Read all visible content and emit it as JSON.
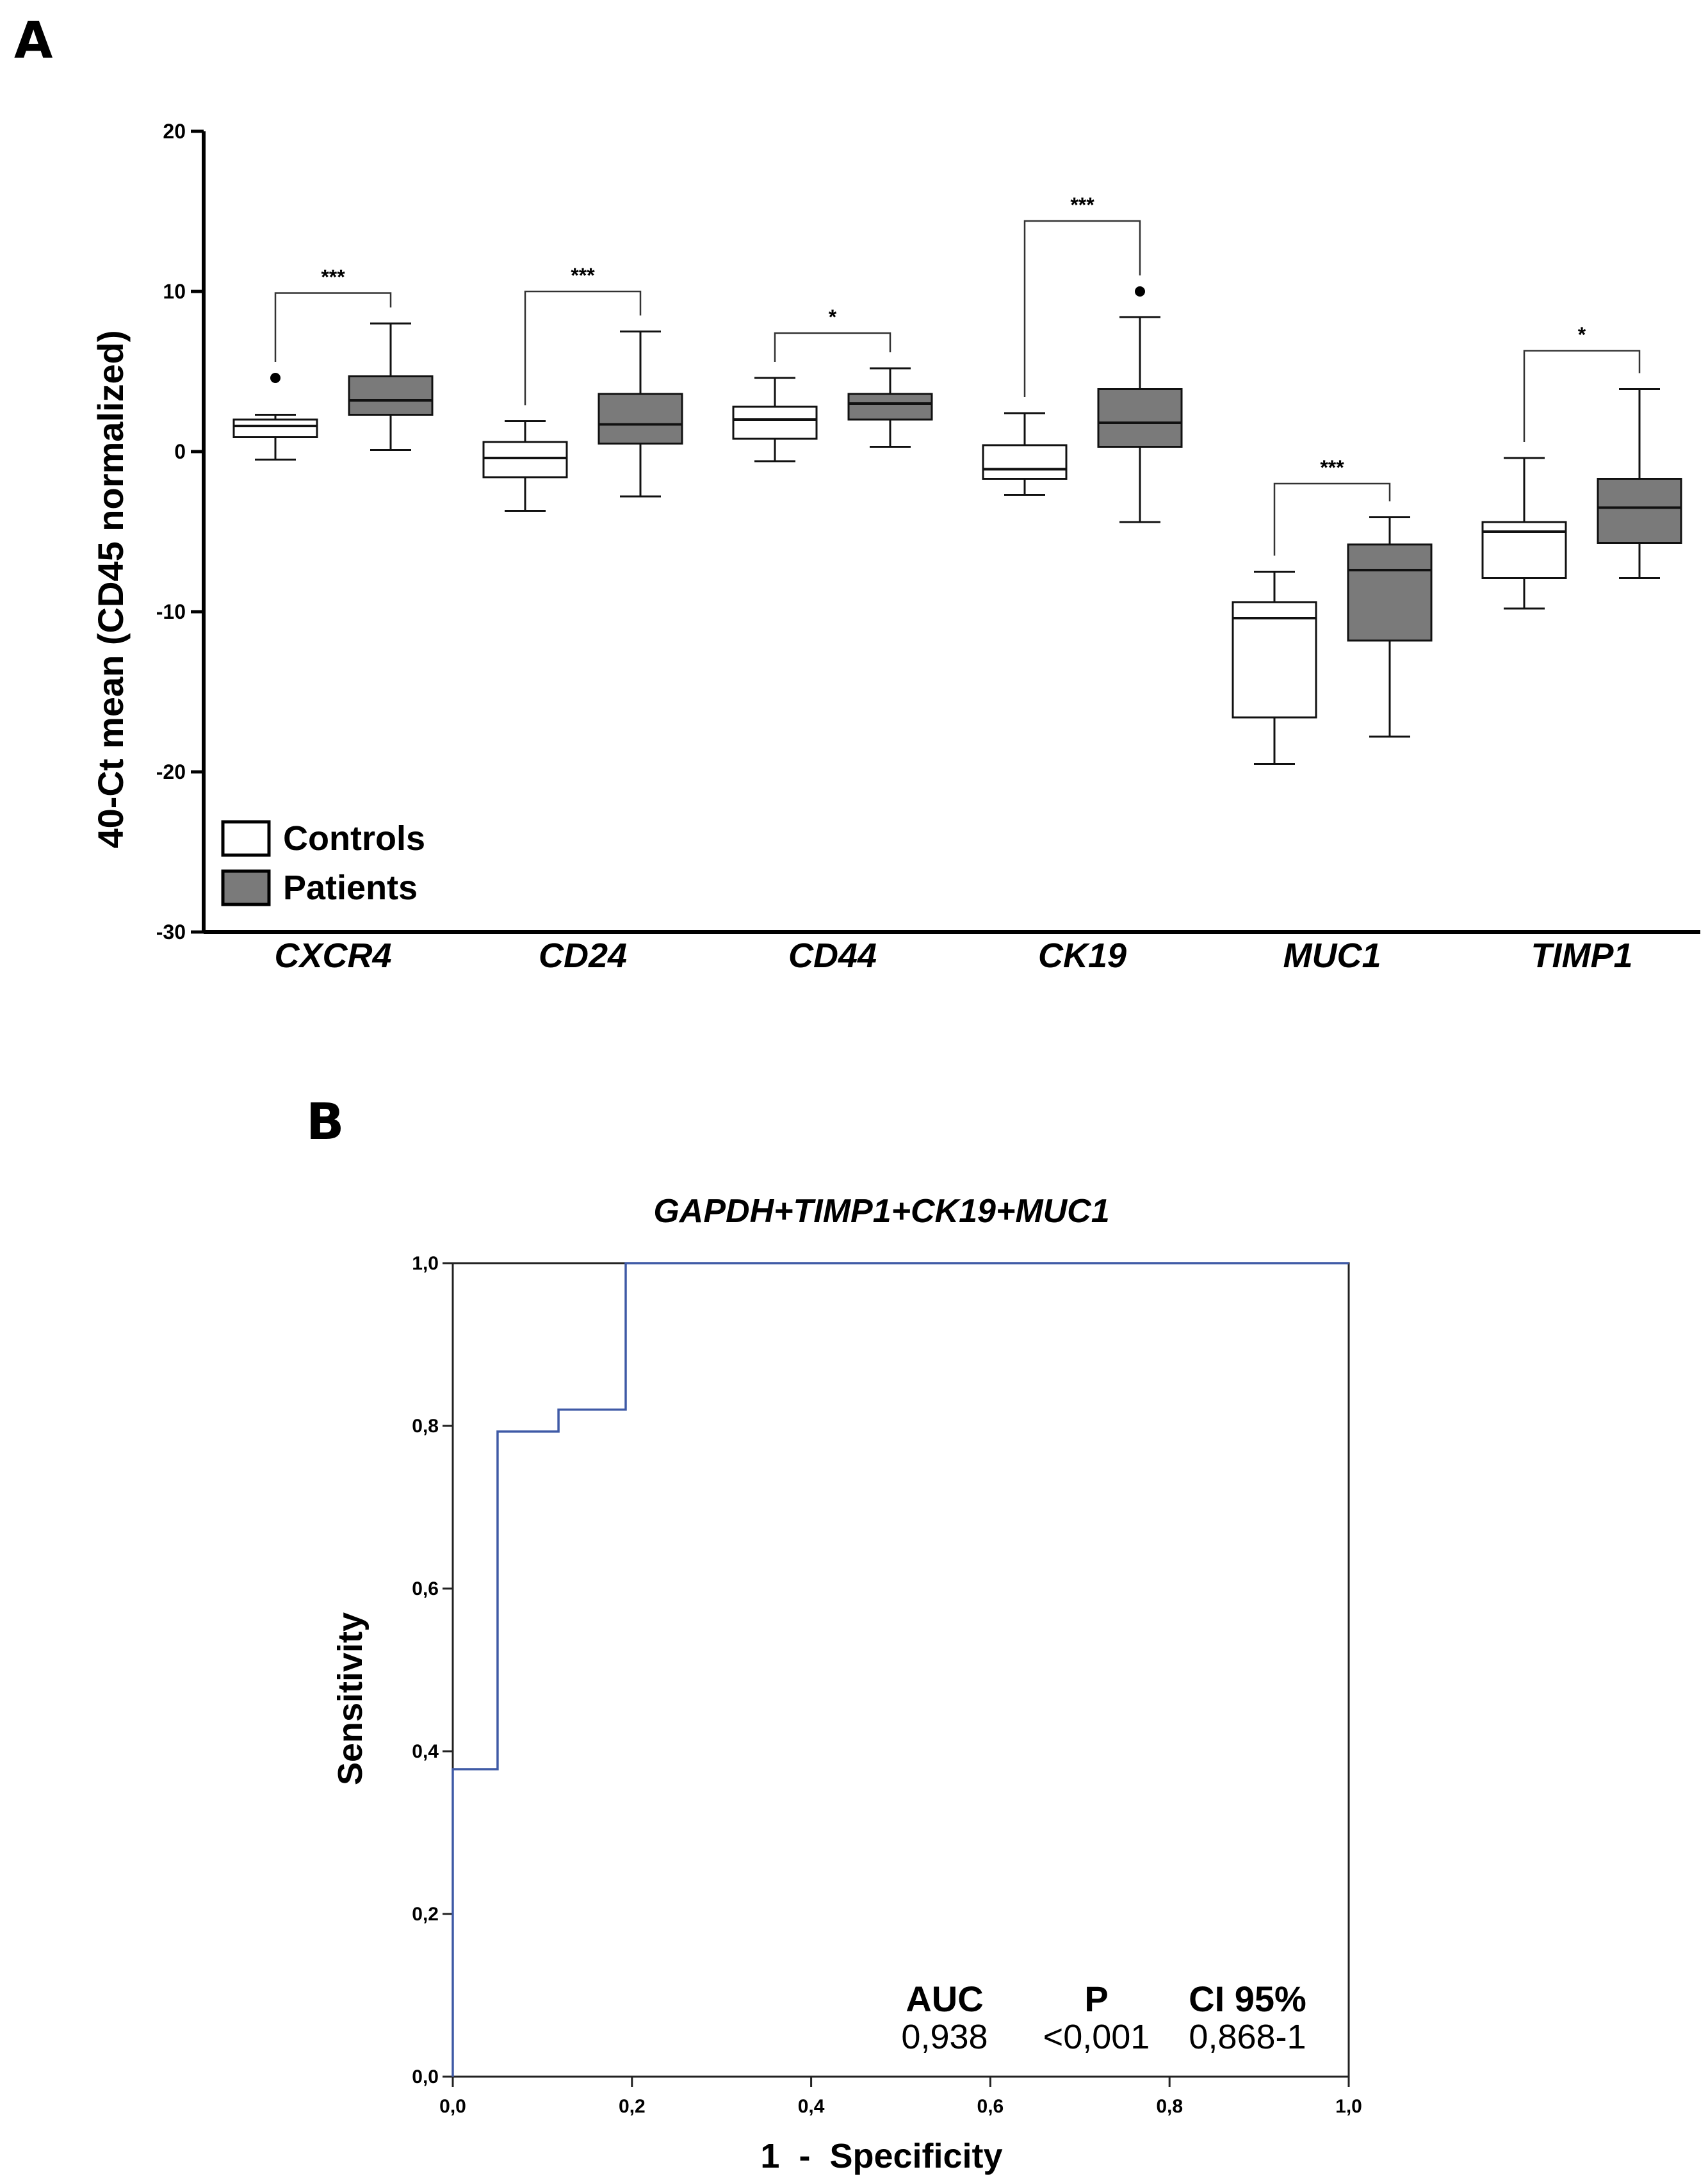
{
  "panel_a_label": "A",
  "panel_b_label": "B",
  "chart_data": [
    {
      "type": "box",
      "ylabel": "40-Ct mean (CD45 normalized)",
      "xlabel": "",
      "ylim": [
        -30,
        20
      ],
      "yticks": [
        "20",
        "10",
        "0",
        "-10",
        "-20",
        "-30"
      ],
      "ytick_values": [
        20,
        10,
        0,
        -10,
        -20,
        -30
      ],
      "categories": [
        "CXCR4",
        "CD24",
        "CD44",
        "CK19",
        "MUC1",
        "TIMP1"
      ],
      "legend": {
        "position": "bottom-left",
        "entries": [
          "Controls",
          "Patients"
        ]
      },
      "colors": {
        "controls_fill": "#ffffff",
        "patients_fill": "#7a7a7a",
        "stroke": "#111111"
      },
      "series": [
        {
          "name": "Controls",
          "boxes": [
            {
              "min": -0.5,
              "q1": 0.9,
              "median": 1.6,
              "q3": 2.0,
              "max": 2.3,
              "outliers": [
                4.6
              ]
            },
            {
              "min": -3.7,
              "q1": -1.6,
              "median": -0.4,
              "q3": 0.6,
              "max": 1.9,
              "outliers": []
            },
            {
              "min": -0.6,
              "q1": 0.8,
              "median": 2.0,
              "q3": 2.8,
              "max": 4.6,
              "outliers": []
            },
            {
              "min": -2.7,
              "q1": -1.7,
              "median": -1.1,
              "q3": 0.4,
              "max": 2.4,
              "outliers": []
            },
            {
              "min": -19.5,
              "q1": -16.6,
              "median": -10.4,
              "q3": -9.4,
              "max": -7.5,
              "outliers": []
            },
            {
              "min": -9.8,
              "q1": -7.9,
              "median": -5.0,
              "q3": -4.4,
              "max": -0.4,
              "outliers": []
            }
          ]
        },
        {
          "name": "Patients",
          "boxes": [
            {
              "min": 0.1,
              "q1": 2.3,
              "median": 3.2,
              "q3": 4.7,
              "max": 8.0,
              "outliers": []
            },
            {
              "min": -2.8,
              "q1": 0.5,
              "median": 1.7,
              "q3": 3.6,
              "max": 7.5,
              "outliers": []
            },
            {
              "min": 0.3,
              "q1": 2.0,
              "median": 3.0,
              "q3": 3.6,
              "max": 5.2,
              "outliers": []
            },
            {
              "min": -4.4,
              "q1": 0.3,
              "median": 1.8,
              "q3": 3.9,
              "max": 8.4,
              "outliers": [
                10.0
              ]
            },
            {
              "min": -17.8,
              "q1": -11.8,
              "median": -7.4,
              "q3": -5.8,
              "max": -4.1,
              "outliers": []
            },
            {
              "min": -7.9,
              "q1": -5.7,
              "median": -3.5,
              "q3": -1.7,
              "max": 3.9,
              "outliers": []
            }
          ]
        }
      ],
      "significance": [
        {
          "category": "CXCR4",
          "label": "***",
          "bracket_y": 9.9
        },
        {
          "category": "CD24",
          "label": "***",
          "bracket_y": 10.0
        },
        {
          "category": "CD44",
          "label": "*",
          "bracket_y": 7.4
        },
        {
          "category": "CK19",
          "label": "***",
          "bracket_y": 14.4
        },
        {
          "category": "MUC1",
          "label": "***",
          "bracket_y": -2.0
        },
        {
          "category": "TIMP1",
          "label": "*",
          "bracket_y": 6.3
        }
      ]
    },
    {
      "type": "line",
      "title": "GAPDH+TIMP1+CK19+MUC1",
      "xlabel": "1  -  Specificity",
      "ylabel": "Sensitivity",
      "xlim": [
        0,
        1
      ],
      "ylim": [
        0,
        1
      ],
      "xticks": [
        "0,0",
        "0,2",
        "0,4",
        "0,6",
        "0,8",
        "1,0"
      ],
      "xtick_values": [
        0,
        0.2,
        0.4,
        0.6,
        0.8,
        1.0
      ],
      "yticks": [
        "0,0",
        "0,2",
        "0,4",
        "0,6",
        "0,8",
        "1,0"
      ],
      "ytick_values": [
        0,
        0.2,
        0.4,
        0.6,
        0.8,
        1.0
      ],
      "line_color": "#3f5aa6",
      "series": [
        {
          "name": "ROC",
          "x": [
            0,
            0,
            0.05,
            0.05,
            0.118,
            0.118,
            0.193,
            0.193,
            1.0
          ],
          "y": [
            0,
            0.378,
            0.378,
            0.793,
            0.793,
            0.82,
            0.82,
            1.0,
            1.0
          ]
        }
      ],
      "stats": {
        "headers": [
          "AUC",
          "P",
          "CI 95%"
        ],
        "values": [
          "0,938",
          "<0,001",
          "0,868-1"
        ]
      }
    }
  ]
}
